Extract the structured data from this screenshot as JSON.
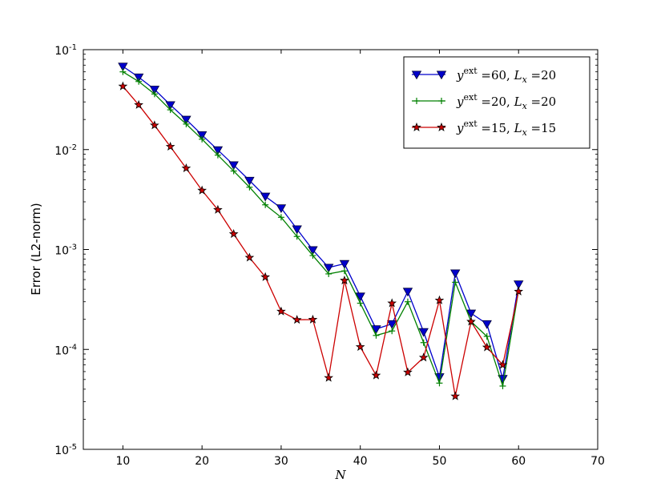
{
  "chart_data": {
    "type": "line",
    "xlabel": "N",
    "ylabel": "Error (L2-norm)",
    "xlim": [
      5,
      70
    ],
    "ylim": [
      1e-05,
      0.1
    ],
    "yscale": "log",
    "grid": false,
    "legend_position": "top-right",
    "x_ticks": [
      10,
      20,
      30,
      40,
      50,
      60,
      70
    ],
    "x_tick_labels": [
      "10",
      "20",
      "30",
      "40",
      "50",
      "60",
      "70"
    ],
    "y_ticks": [
      1e-05,
      0.0001,
      0.001,
      0.01,
      0.1
    ],
    "y_tick_labels": [
      {
        "base": "10",
        "exp": "-5"
      },
      {
        "base": "10",
        "exp": "-4"
      },
      {
        "base": "10",
        "exp": "-3"
      },
      {
        "base": "10",
        "exp": "-2"
      },
      {
        "base": "10",
        "exp": "-1"
      }
    ],
    "x": [
      10,
      12,
      14,
      16,
      18,
      20,
      22,
      24,
      26,
      28,
      30,
      32,
      34,
      36,
      38,
      40,
      42,
      44,
      46,
      48,
      50,
      52,
      54,
      56,
      58,
      60
    ],
    "series": [
      {
        "color": "#0000cc",
        "marker": "triangle-down",
        "legend": {
          "y_sup": "ext",
          "y_val": "60",
          "lx_val": "20"
        },
        "values": [
          0.068,
          0.053,
          0.04,
          0.028,
          0.02,
          0.014,
          0.0099,
          0.007,
          0.0049,
          0.0034,
          0.0026,
          0.0016,
          0.00099,
          0.00066,
          0.00072,
          0.00034,
          0.00016,
          0.00018,
          0.00038,
          0.00015,
          5.3e-05,
          0.00058,
          0.00023,
          0.00018,
          5.1e-05,
          0.00045
        ]
      },
      {
        "color": "#008000",
        "marker": "plus",
        "legend": {
          "y_sup": "ext",
          "y_val": "20",
          "lx_val": "20"
        },
        "values": [
          0.06,
          0.048,
          0.036,
          0.025,
          0.018,
          0.0127,
          0.0088,
          0.0061,
          0.0042,
          0.0028,
          0.0021,
          0.00135,
          0.00087,
          0.00057,
          0.00061,
          0.00029,
          0.000138,
          0.000153,
          0.0003,
          0.000117,
          4.6e-05,
          0.00047,
          0.00019,
          0.000135,
          4.3e-05,
          0.00039
        ]
      },
      {
        "color": "#cc0000",
        "marker": "star",
        "legend": {
          "y_sup": "ext",
          "y_val": "15",
          "lx_val": "15"
        },
        "values": [
          0.043,
          0.028,
          0.0175,
          0.0107,
          0.0065,
          0.0039,
          0.0025,
          0.00143,
          0.00083,
          0.00053,
          0.00024,
          0.000198,
          0.000199,
          5.2e-05,
          0.00049,
          0.000106,
          5.5e-05,
          0.00029,
          5.9e-05,
          8.3e-05,
          0.00031,
          3.4e-05,
          0.00019,
          0.000105,
          7e-05,
          0.00038
        ]
      }
    ]
  }
}
